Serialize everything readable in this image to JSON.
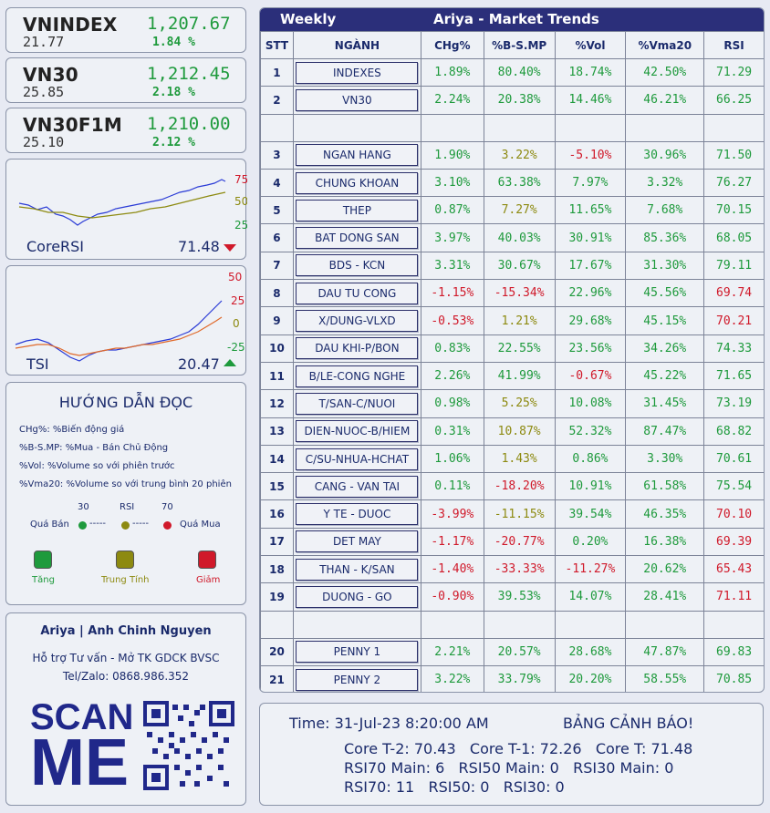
{
  "indices": [
    {
      "name": "VNINDEX",
      "price": "1,207.67",
      "change": "21.77",
      "pct": "1.84 %"
    },
    {
      "name": "VN30",
      "price": "1,212.45",
      "change": "25.85",
      "pct": "2.18 %"
    },
    {
      "name": "VN30F1M",
      "price": "1,210.00",
      "change": "25.10",
      "pct": "2.12 %"
    }
  ],
  "corersi": {
    "label": "CoreRSI",
    "value": "71.48",
    "ticks": [
      "75",
      "50",
      "25"
    ],
    "trend": "down",
    "arrow_color": "#d0192a"
  },
  "tsi": {
    "label": "TSI",
    "value": "20.47",
    "ticks": [
      "50",
      "25",
      "0",
      "-25"
    ],
    "trend": "up",
    "arrow_color": "#1e9a3c"
  },
  "guide": {
    "title": "HƯỚNG DẪN ĐỌC",
    "lines": [
      "CHg%: %Biến động giá",
      "%B-S.MP: %Mua - Bán Chủ Động",
      "%Vol: %Volume so với phiên trước",
      "%Vma20: %Volume so với trung bình 20 phiên"
    ],
    "rsi_scale": {
      "low": "30",
      "mid": "RSI",
      "high": "70",
      "left_label": "Quá Bán",
      "right_label": "Quá Mua",
      "dashes": "-----"
    },
    "legend": [
      {
        "label": "Tăng",
        "color": "#1e9a3c"
      },
      {
        "label": "Trung Tính",
        "color": "#8d8a10"
      },
      {
        "label": "Giảm",
        "color": "#d0192a"
      }
    ]
  },
  "contact": {
    "name": "Ariya | Anh Chinh Nguyen",
    "line2": "Hỗ trợ Tư vấn - Mở TK GDCK BVSC",
    "line3": "Tel/Zalo: 0868.986.352",
    "scan": "SCAN",
    "me": "ME"
  },
  "header": {
    "period": "Weekly",
    "title": "Ariya  -  Market Trends"
  },
  "columns": [
    "STT",
    "NGÀNH",
    "CHg%",
    "%B-S.MP",
    "%Vol",
    "%Vma20",
    "RSI"
  ],
  "rows": [
    {
      "stt": "1",
      "sector": "INDEXES",
      "chg": "1.89%",
      "chg_c": "g",
      "bs": "80.40%",
      "bs_c": "g",
      "vol": "18.74%",
      "vol_c": "g",
      "vma": "42.50%",
      "vma_c": "g",
      "rsi": "71.29",
      "rsi_c": "g"
    },
    {
      "stt": "2",
      "sector": "VN30",
      "chg": "2.24%",
      "chg_c": "g",
      "bs": "20.38%",
      "bs_c": "g",
      "vol": "14.46%",
      "vol_c": "g",
      "vma": "46.21%",
      "vma_c": "g",
      "rsi": "66.25",
      "rsi_c": "g"
    },
    {
      "blank": true
    },
    {
      "stt": "3",
      "sector": "NGAN HANG",
      "chg": "1.90%",
      "chg_c": "g",
      "bs": "3.22%",
      "bs_c": "y",
      "vol": "-5.10%",
      "vol_c": "r",
      "vma": "30.96%",
      "vma_c": "g",
      "rsi": "71.50",
      "rsi_c": "g"
    },
    {
      "stt": "4",
      "sector": "CHUNG KHOAN",
      "chg": "3.10%",
      "chg_c": "g",
      "bs": "63.38%",
      "bs_c": "g",
      "vol": "7.97%",
      "vol_c": "g",
      "vma": "3.32%",
      "vma_c": "g",
      "rsi": "76.27",
      "rsi_c": "g"
    },
    {
      "stt": "5",
      "sector": "THEP",
      "chg": "0.87%",
      "chg_c": "g",
      "bs": "7.27%",
      "bs_c": "y",
      "vol": "11.65%",
      "vol_c": "g",
      "vma": "7.68%",
      "vma_c": "g",
      "rsi": "70.15",
      "rsi_c": "g"
    },
    {
      "stt": "6",
      "sector": "BAT DONG SAN",
      "chg": "3.97%",
      "chg_c": "g",
      "bs": "40.03%",
      "bs_c": "g",
      "vol": "30.91%",
      "vol_c": "g",
      "vma": "85.36%",
      "vma_c": "g",
      "rsi": "68.05",
      "rsi_c": "g"
    },
    {
      "stt": "7",
      "sector": "BDS - KCN",
      "chg": "3.31%",
      "chg_c": "g",
      "bs": "30.67%",
      "bs_c": "g",
      "vol": "17.67%",
      "vol_c": "g",
      "vma": "31.30%",
      "vma_c": "g",
      "rsi": "79.11",
      "rsi_c": "g"
    },
    {
      "stt": "8",
      "sector": "DAU TU CONG",
      "chg": "-1.15%",
      "chg_c": "r",
      "bs": "-15.34%",
      "bs_c": "r",
      "vol": "22.96%",
      "vol_c": "g",
      "vma": "45.56%",
      "vma_c": "g",
      "rsi": "69.74",
      "rsi_c": "r"
    },
    {
      "stt": "9",
      "sector": "X/DUNG-VLXD",
      "chg": "-0.53%",
      "chg_c": "r",
      "bs": "1.21%",
      "bs_c": "y",
      "vol": "29.68%",
      "vol_c": "g",
      "vma": "45.15%",
      "vma_c": "g",
      "rsi": "70.21",
      "rsi_c": "r"
    },
    {
      "stt": "10",
      "sector": "DAU KHI-P/BON",
      "chg": "0.83%",
      "chg_c": "g",
      "bs": "22.55%",
      "bs_c": "g",
      "vol": "23.56%",
      "vol_c": "g",
      "vma": "34.26%",
      "vma_c": "g",
      "rsi": "74.33",
      "rsi_c": "g"
    },
    {
      "stt": "11",
      "sector": "B/LE-CONG NGHE",
      "chg": "2.26%",
      "chg_c": "g",
      "bs": "41.99%",
      "bs_c": "g",
      "vol": "-0.67%",
      "vol_c": "r",
      "vma": "45.22%",
      "vma_c": "g",
      "rsi": "71.65",
      "rsi_c": "g"
    },
    {
      "stt": "12",
      "sector": "T/SAN-C/NUOI",
      "chg": "0.98%",
      "chg_c": "g",
      "bs": "5.25%",
      "bs_c": "y",
      "vol": "10.08%",
      "vol_c": "g",
      "vma": "31.45%",
      "vma_c": "g",
      "rsi": "73.19",
      "rsi_c": "g"
    },
    {
      "stt": "13",
      "sector": "DIEN-NUOC-B/HIEM",
      "chg": "0.31%",
      "chg_c": "g",
      "bs": "10.87%",
      "bs_c": "y",
      "vol": "52.32%",
      "vol_c": "g",
      "vma": "87.47%",
      "vma_c": "g",
      "rsi": "68.82",
      "rsi_c": "g"
    },
    {
      "stt": "14",
      "sector": "C/SU-NHUA-HCHAT",
      "chg": "1.06%",
      "chg_c": "g",
      "bs": "1.43%",
      "bs_c": "y",
      "vol": "0.86%",
      "vol_c": "g",
      "vma": "3.30%",
      "vma_c": "g",
      "rsi": "70.61",
      "rsi_c": "g"
    },
    {
      "stt": "15",
      "sector": "CANG - VAN TAI",
      "chg": "0.11%",
      "chg_c": "g",
      "bs": "-18.20%",
      "bs_c": "r",
      "vol": "10.91%",
      "vol_c": "g",
      "vma": "61.58%",
      "vma_c": "g",
      "rsi": "75.54",
      "rsi_c": "g"
    },
    {
      "stt": "16",
      "sector": "Y TE - DUOC",
      "chg": "-3.99%",
      "chg_c": "r",
      "bs": "-11.15%",
      "bs_c": "y",
      "vol": "39.54%",
      "vol_c": "g",
      "vma": "46.35%",
      "vma_c": "g",
      "rsi": "70.10",
      "rsi_c": "r"
    },
    {
      "stt": "17",
      "sector": "DET MAY",
      "chg": "-1.17%",
      "chg_c": "r",
      "bs": "-20.77%",
      "bs_c": "r",
      "vol": "0.20%",
      "vol_c": "g",
      "vma": "16.38%",
      "vma_c": "g",
      "rsi": "69.39",
      "rsi_c": "r"
    },
    {
      "stt": "18",
      "sector": "THAN - K/SAN",
      "chg": "-1.40%",
      "chg_c": "r",
      "bs": "-33.33%",
      "bs_c": "r",
      "vol": "-11.27%",
      "vol_c": "r",
      "vma": "20.62%",
      "vma_c": "g",
      "rsi": "65.43",
      "rsi_c": "r"
    },
    {
      "stt": "19",
      "sector": "DUONG - GO",
      "chg": "-0.90%",
      "chg_c": "r",
      "bs": "39.53%",
      "bs_c": "g",
      "vol": "14.07%",
      "vol_c": "g",
      "vma": "28.41%",
      "vma_c": "g",
      "rsi": "71.11",
      "rsi_c": "r"
    },
    {
      "blank": true
    },
    {
      "stt": "20",
      "sector": "PENNY 1",
      "chg": "2.21%",
      "chg_c": "g",
      "bs": "20.57%",
      "bs_c": "g",
      "vol": "28.68%",
      "vol_c": "g",
      "vma": "47.87%",
      "vma_c": "g",
      "rsi": "69.83",
      "rsi_c": "g"
    },
    {
      "stt": "21",
      "sector": "PENNY 2",
      "chg": "3.22%",
      "chg_c": "g",
      "bs": "33.79%",
      "bs_c": "g",
      "vol": "20.20%",
      "vol_c": "g",
      "vma": "58.55%",
      "vma_c": "g",
      "rsi": "70.85",
      "rsi_c": "g"
    }
  ],
  "alert": {
    "time": "Time: 31-Jul-23 8:20:00 AM",
    "title": "BẢNG CẢNH BÁO!",
    "line1": "Core T-2: 70.43   Core T-1: 72.26   Core T: 71.48",
    "line2": "RSI70 Main: 6   RSI50 Main: 0   RSI30 Main: 0",
    "line3": "RSI70: 11   RSI50: 0   RSI30: 0"
  },
  "colors": {
    "up": "#1e9a3c",
    "down": "#d0192a",
    "neutral": "#8d8a10",
    "header": "#2b2f7a"
  }
}
